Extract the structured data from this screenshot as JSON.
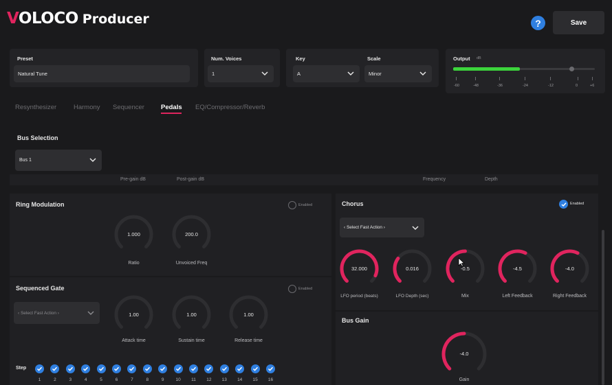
{
  "app": {
    "logo": "VOLOCO",
    "title": "Producer"
  },
  "header": {
    "help_label": "?",
    "save_label": "Save"
  },
  "preset": {
    "label": "Preset",
    "value": "Natural Tune"
  },
  "voices": {
    "label": "Num. Voices",
    "value": "1"
  },
  "key": {
    "label": "Key",
    "value": "A"
  },
  "scale": {
    "label": "Scale",
    "value": "Minor"
  },
  "output": {
    "label": "Output",
    "unit": "dB",
    "level_fraction": 0.47,
    "ticks": [
      "-60",
      "-48",
      "-36",
      "-24",
      "-12",
      "0",
      "+6"
    ]
  },
  "tabs": [
    {
      "label": "Resynthesizer",
      "active": false
    },
    {
      "label": "Harmony",
      "active": false
    },
    {
      "label": "Sequencer",
      "active": false
    },
    {
      "label": "Pedals",
      "active": true
    },
    {
      "label": "EQ/Compressor/Reverb",
      "active": false
    }
  ],
  "bus_selection": {
    "title": "Bus Selection",
    "value": "Bus 1"
  },
  "partial_labels": {
    "pre_gain": "Pre-gain dB",
    "post_gain": "Post-gain dB",
    "frequency": "Frequency",
    "depth": "Depth"
  },
  "ring_modulation": {
    "title": "Ring Modulation",
    "enabled_label": "Enabled",
    "enabled": false,
    "knobs": [
      {
        "label": "Ratio",
        "value": "1.000"
      },
      {
        "label": "Unvoiced Freq",
        "value": "200.0"
      }
    ]
  },
  "sequenced_gate": {
    "title": "Sequenced Gate",
    "enabled_label": "Enabled",
    "enabled": false,
    "fast_action": "‹ Select Fast Action ›",
    "knobs": [
      {
        "label": "Attack time",
        "value": "1.00"
      },
      {
        "label": "Sustain time",
        "value": "1.00"
      },
      {
        "label": "Release time",
        "value": "1.00"
      }
    ],
    "step_label": "Step",
    "steps": [
      "1",
      "2",
      "3",
      "4",
      "5",
      "6",
      "7",
      "8",
      "9",
      "10",
      "11",
      "12",
      "13",
      "14",
      "15",
      "16"
    ]
  },
  "chorus": {
    "title": "Chorus",
    "enabled_label": "Enabled",
    "enabled": true,
    "fast_action": "‹ Select Fast Action ›",
    "knobs": [
      {
        "label": "LFO period (beats)",
        "value": "32.000",
        "fill": 0.92
      },
      {
        "label": "LFO Depth (sec)",
        "value": "0.016",
        "fill": 0.3
      },
      {
        "label": "Mix",
        "value": "-0.5",
        "fill": 0.5
      },
      {
        "label": "Left Feedback",
        "value": "-4.5",
        "fill": 0.6
      },
      {
        "label": "Right Feedback",
        "value": "-4.0",
        "fill": 0.6
      }
    ]
  },
  "bus_gain": {
    "title": "Bus Gain",
    "knob": {
      "label": "Gain",
      "value": "-4.0",
      "fill": 0.5
    }
  },
  "colors": {
    "accent": "#e0245e",
    "blue": "#2f7fe0",
    "meter": "#3cd43c"
  }
}
